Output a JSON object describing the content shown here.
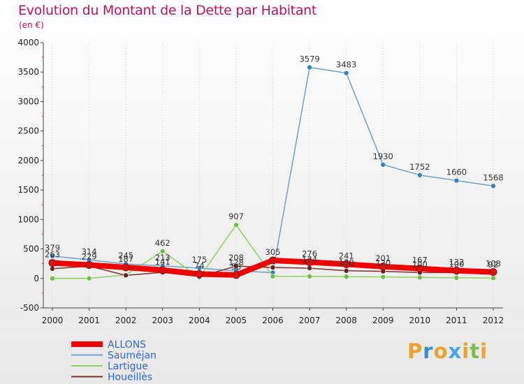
{
  "title": "Evolution du Montant de la Dette par Habitant",
  "subtitle": "(en €)",
  "logo": {
    "text": "Proxiti",
    "letters": [
      {
        "ch": "P",
        "color": "#f0a030"
      },
      {
        "ch": "r",
        "color": "#3a8fd0"
      },
      {
        "ch": "o",
        "color": "#f0a030"
      },
      {
        "ch": "x",
        "color": "#4aa8e0"
      },
      {
        "ch": "i",
        "color": "#f0a030"
      },
      {
        "ch": "t",
        "color": "#7cc04a"
      },
      {
        "ch": "i",
        "color": "#f0a030"
      }
    ]
  },
  "chart_data": {
    "type": "line",
    "title": "Evolution du Montant de la Dette par Habitant",
    "subtitle": "(en €)",
    "xlabel": "",
    "ylabel": "",
    "ylim": [
      -500,
      4000
    ],
    "yticks": [
      -500,
      0,
      500,
      1000,
      1500,
      2000,
      2500,
      3000,
      3500,
      4000
    ],
    "x": [
      "2000",
      "2001",
      "2002",
      "2003",
      "2004",
      "2005",
      "2006",
      "2007",
      "2008",
      "2009",
      "2010",
      "2011",
      "2012"
    ],
    "grid": "dotted vertical",
    "legend_position": "bottom-left",
    "series": [
      {
        "name": "ALLONS",
        "color": "#ee0000",
        "marker": "#dd1010",
        "width": 8,
        "values": [
          263,
          229,
          187,
          141,
          74,
          58,
          305,
          276,
          241,
          201,
          167,
          132,
          108
        ],
        "labels": [
          "263",
          "229",
          "187",
          "141",
          "74",
          "58",
          "305",
          "276",
          "241",
          "201",
          "167",
          "132",
          "108"
        ]
      },
      {
        "name": "Sauméjan",
        "color": "#6fa0cc",
        "marker": "#3a7fc0",
        "width": 1.5,
        "values": [
          379,
          314,
          245,
          213,
          175,
          128,
          99,
          3579,
          3483,
          1930,
          1752,
          1660,
          1568
        ],
        "labels": [
          "379",
          "314",
          "245",
          "213",
          "175",
          "128",
          "",
          "3579",
          "3483",
          "1930",
          "1752",
          "1660",
          "1568"
        ]
      },
      {
        "name": "Lartigue",
        "color": "#90d060",
        "marker": "#6cc040",
        "width": 1.5,
        "values": [
          0,
          0,
          60,
          462,
          15,
          907,
          36,
          34,
          30,
          25,
          16,
          10,
          5
        ],
        "labels": [
          "",
          "",
          "",
          "462",
          "",
          "907",
          "",
          "",
          "",
          "",
          "",
          "",
          ""
        ]
      },
      {
        "name": "Houeillès",
        "color": "#7a3030",
        "marker": "#6a2020",
        "width": 1.5,
        "values": [
          165,
          207,
          52,
          102,
          31,
          208,
          186,
          174,
          130,
          120,
          100,
          100,
          92
        ],
        "labels": [
          "",
          "",
          "",
          "",
          "",
          "208",
          "",
          "174",
          "130",
          "120",
          "100",
          "100",
          "92"
        ]
      }
    ]
  }
}
